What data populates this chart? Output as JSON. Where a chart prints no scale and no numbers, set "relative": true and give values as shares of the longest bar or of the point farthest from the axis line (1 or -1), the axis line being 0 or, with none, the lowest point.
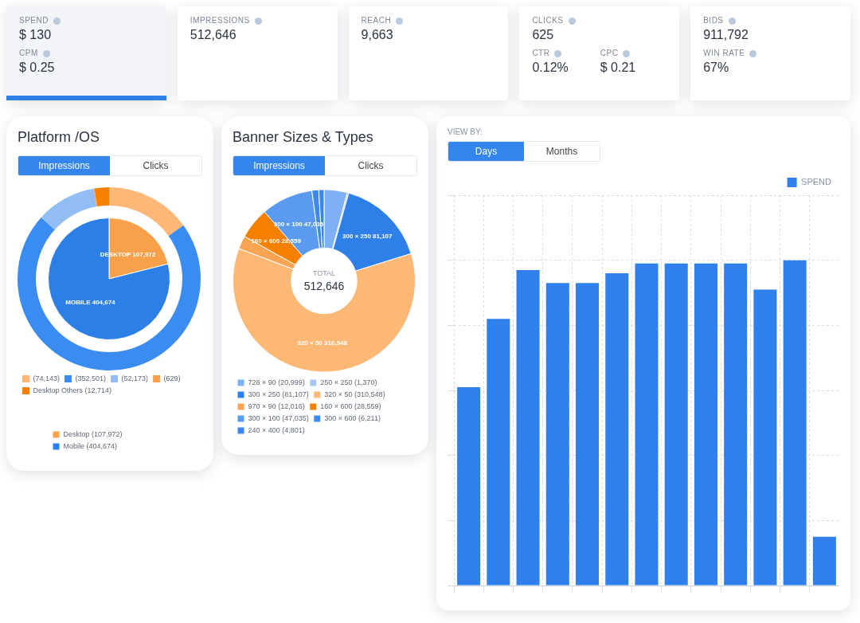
{
  "chart_data": [
    {
      "type": "other",
      "annotations": [
        "SPEND",
        "$ 130",
        "CPM",
        "$ 0.25",
        "IMPRESSIONS",
        "512,646",
        "REACH",
        "9,663",
        "CLICKS",
        "625",
        "CTR",
        "0.12%",
        "CPC",
        "$ 0.21",
        "BIDS",
        "911,792",
        "WIN RATE",
        "67%"
      ]
    },
    {
      "type": "bar",
      "relative": true,
      "categories": [
        null,
        null,
        null,
        null,
        null,
        null,
        null,
        null,
        null,
        null,
        null,
        null,
        null
      ],
      "series": [
        {
          "name": "SPEND",
          "color": "#2f80ed",
          "values": [
            0.61,
            0.82,
            0.97,
            0.93,
            0.93,
            0.96,
            0.99,
            0.99,
            0.99,
            0.99,
            0.91,
            1,
            0.15
          ]
        }
      ],
      "legend": "top right",
      "grid": true,
      "annotations": [
        "VIEW BY:",
        "Days",
        "Months"
      ]
    },
    {
      "type": "pie",
      "title": "Platform /OS",
      "legend": "bottom",
      "annotations": [
        "Impressions",
        "Clicks"
      ],
      "categories": [
        "Desktop (107,972)",
        "Mobile (404,674)"
      ],
      "values": [
        107972,
        404674
      ],
      "colors": [
        "#f9a04b",
        "#2d7fe8"
      ],
      "value_labels": [
        "DESKTOP 107,972",
        "MOBILE 404,674"
      ]
    },
    {
      "type": "donut",
      "legend": "bottom",
      "categories": [
        "(74,143)",
        "(352,501)",
        "(52,173)",
        "(629)",
        "Desktop Others (12,714)"
      ],
      "values": [
        74143,
        352501,
        52173,
        629,
        12714
      ],
      "colors": [
        "#fdb877",
        "#3b8cf0",
        "#93bdf5",
        "#f7a24f",
        "#f78100"
      ]
    },
    {
      "type": "donut",
      "title": "Banner Sizes & Types",
      "legend": "bottom",
      "annotations": [
        "Impressions",
        "Clicks",
        "TOTAL",
        "512,646"
      ],
      "categories": [
        "728 × 90 (20,999)",
        "250 × 250 (1,370)",
        "300 × 250 (81,107)",
        "320 × 50 (310,548)",
        "970 × 90 (12,016)",
        "160 × 600 (28,559)",
        "300 × 100 (47,035)",
        "300 × 600 (6,211)",
        "240 × 400 (4,801)"
      ],
      "values": [
        20999,
        1370,
        81107,
        310548,
        12016,
        28559,
        47035,
        6211,
        4801
      ],
      "colors": [
        "#7fb0f5",
        "#a6c9f8",
        "#2f7fe9",
        "#fdb876",
        "#f9a453",
        "#f68000",
        "#5a9bf0",
        "#3f88ec",
        "#3a86ef"
      ],
      "value_labels": [
        null,
        null,
        "300 × 250 81,107",
        "320 × 50 310,548",
        null,
        "160 × 600 28,559",
        "300 × 100 47,035",
        null,
        null
      ]
    }
  ]
}
